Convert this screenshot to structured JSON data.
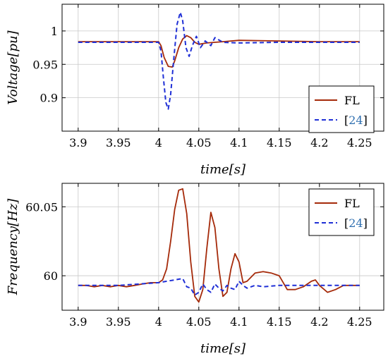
{
  "colors": {
    "fl": "#a52a0a",
    "ref": "#1f2fd6",
    "ref_label": "#2f6fb0"
  },
  "chart_data": [
    {
      "type": "line",
      "xlabel": "time[s]",
      "ylabel": "Voltage[pu]",
      "xlim": [
        3.88,
        4.28
      ],
      "ylim": [
        0.85,
        1.04
      ],
      "xticks": [
        "3.9",
        "3.95",
        "4",
        "4.05",
        "4.1",
        "4.15",
        "4.2",
        "4.25"
      ],
      "xtick_values": [
        3.9,
        3.95,
        4.0,
        4.05,
        4.1,
        4.15,
        4.2,
        4.25
      ],
      "yticks": [
        "0.9",
        "0.95",
        "1"
      ],
      "ytick_values": [
        0.9,
        0.95,
        1.0
      ],
      "grid": true,
      "legend_position": "bottom-right",
      "series": [
        {
          "name": "FL",
          "style": "solid",
          "x": [
            3.9,
            3.95,
            4.0,
            4.003,
            4.007,
            4.012,
            4.017,
            4.02,
            4.025,
            4.03,
            4.035,
            4.04,
            4.045,
            4.05,
            4.06,
            4.07,
            4.08,
            4.1,
            4.15,
            4.2,
            4.25
          ],
          "y": [
            0.984,
            0.984,
            0.984,
            0.978,
            0.96,
            0.947,
            0.946,
            0.955,
            0.975,
            0.988,
            0.993,
            0.99,
            0.983,
            0.98,
            0.982,
            0.983,
            0.984,
            0.986,
            0.985,
            0.984,
            0.984
          ]
        },
        {
          "name": "[24]",
          "style": "dashed",
          "x": [
            3.9,
            3.95,
            4.0,
            4.003,
            4.006,
            4.009,
            4.012,
            4.015,
            4.019,
            4.023,
            4.027,
            4.03,
            4.034,
            4.038,
            4.042,
            4.047,
            4.052,
            4.058,
            4.065,
            4.07,
            4.08,
            4.1,
            4.15,
            4.2,
            4.25
          ],
          "y": [
            0.983,
            0.983,
            0.983,
            0.97,
            0.93,
            0.893,
            0.883,
            0.905,
            0.96,
            1.01,
            1.028,
            1.015,
            0.975,
            0.962,
            0.978,
            0.992,
            0.975,
            0.985,
            0.978,
            0.99,
            0.983,
            0.982,
            0.983,
            0.983,
            0.983
          ]
        }
      ]
    },
    {
      "type": "line",
      "xlabel": "time[s]",
      "ylabel": "Frequency[Hz]",
      "xlim": [
        3.88,
        4.28
      ],
      "ylim": [
        59.975,
        60.067
      ],
      "xticks": [
        "3.9",
        "3.95",
        "4",
        "4.05",
        "4.1",
        "4.15",
        "4.2",
        "4.25"
      ],
      "xtick_values": [
        3.9,
        3.95,
        4.0,
        4.05,
        4.1,
        4.15,
        4.2,
        4.25
      ],
      "yticks": [
        "60",
        "60.05"
      ],
      "ytick_values": [
        60.0,
        60.05
      ],
      "grid": true,
      "legend_position": "top-right",
      "series": [
        {
          "name": "FL",
          "style": "solid",
          "x": [
            3.9,
            3.91,
            3.92,
            3.93,
            3.94,
            3.95,
            3.96,
            3.97,
            3.98,
            3.99,
            4.0,
            4.005,
            4.01,
            4.015,
            4.02,
            4.025,
            4.03,
            4.035,
            4.04,
            4.045,
            4.05,
            4.055,
            4.06,
            4.065,
            4.07,
            4.075,
            4.08,
            4.085,
            4.09,
            4.095,
            4.1,
            4.105,
            4.11,
            4.12,
            4.13,
            4.14,
            4.15,
            4.16,
            4.17,
            4.18,
            4.19,
            4.195,
            4.2,
            4.21,
            4.22,
            4.23,
            4.24,
            4.25
          ],
          "y": [
            59.993,
            59.993,
            59.992,
            59.993,
            59.992,
            59.993,
            59.992,
            59.993,
            59.994,
            59.995,
            59.995,
            59.997,
            60.005,
            60.025,
            60.048,
            60.062,
            60.063,
            60.045,
            60.01,
            59.985,
            59.981,
            59.99,
            60.02,
            60.046,
            60.035,
            60.005,
            59.985,
            59.988,
            60.005,
            60.016,
            60.01,
            59.995,
            59.996,
            60.002,
            60.003,
            60.002,
            60.0,
            59.99,
            59.99,
            59.992,
            59.996,
            59.997,
            59.993,
            59.988,
            59.99,
            59.993,
            59.993,
            59.993
          ]
        },
        {
          "name": "[24]",
          "style": "dashed",
          "x": [
            3.9,
            3.95,
            4.0,
            4.01,
            4.02,
            4.03,
            4.035,
            4.04,
            4.045,
            4.05,
            4.055,
            4.06,
            4.065,
            4.07,
            4.075,
            4.08,
            4.085,
            4.09,
            4.095,
            4.1,
            4.105,
            4.11,
            4.12,
            4.13,
            4.15,
            4.2,
            4.25
          ],
          "y": [
            59.993,
            59.993,
            59.995,
            59.996,
            59.997,
            59.998,
            59.992,
            59.991,
            59.986,
            59.988,
            59.994,
            59.99,
            59.988,
            59.994,
            59.991,
            59.989,
            59.993,
            59.991,
            59.99,
            59.996,
            59.993,
            59.991,
            59.993,
            59.992,
            59.993,
            59.993,
            59.993
          ]
        }
      ]
    }
  ]
}
